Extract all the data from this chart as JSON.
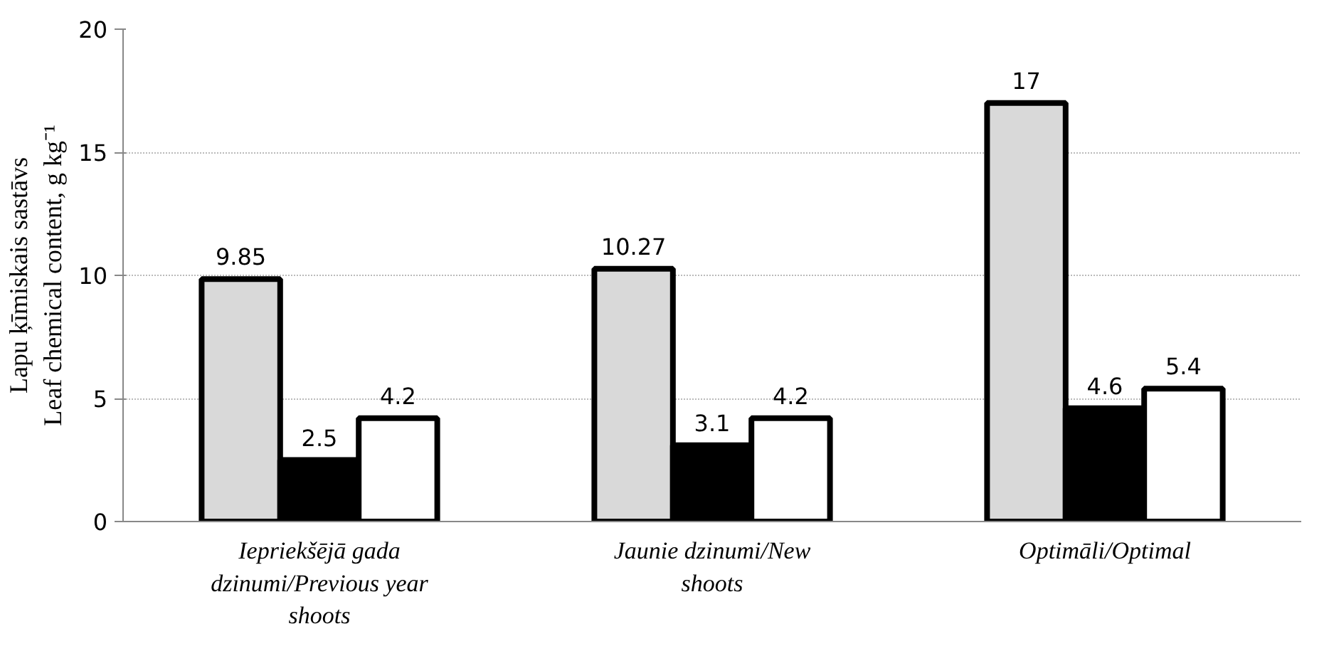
{
  "chart_data": {
    "type": "bar",
    "ylabel": "Lapu ķīmiskais sastāvs\nLeaf chemical content, g kg⁻¹",
    "categories": [
      "Iepriekšējā gada dzinumi/Previous year shoots",
      "Jaunie dzinumi/New shoots",
      "Optimāli/Optimal"
    ],
    "series": [
      {
        "color": "#d9d9d9",
        "values": [
          9.85,
          10.27,
          17
        ]
      },
      {
        "color": "#000000",
        "values": [
          2.5,
          3.1,
          4.6
        ]
      },
      {
        "color": "#ffffff",
        "values": [
          4.2,
          4.2,
          5.4
        ]
      }
    ],
    "ylim": [
      0,
      20
    ],
    "yticks": [
      0,
      5,
      10,
      15,
      20
    ],
    "grid": "y",
    "data_labels": true
  }
}
